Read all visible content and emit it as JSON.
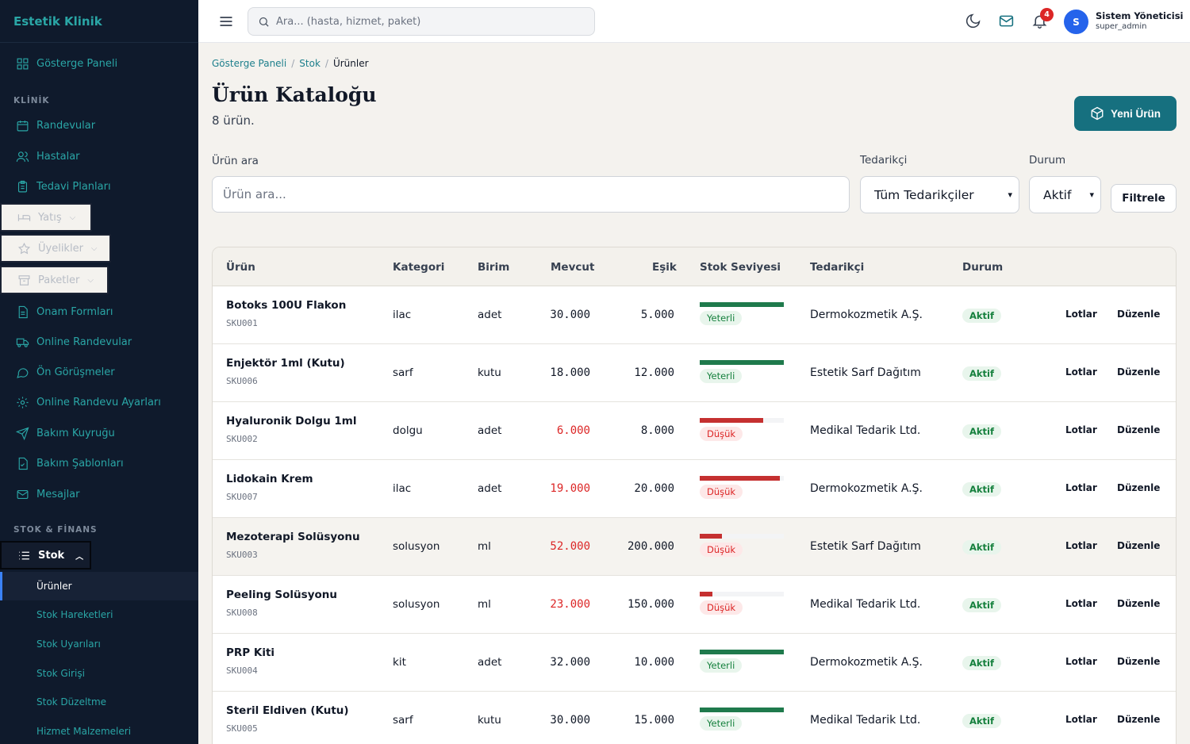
{
  "brand": "Estetik Klinik",
  "sidebar": {
    "dashboard": "Gösterge Paneli",
    "section_clinic": "KLİNİK",
    "clinic_items": [
      "Randevular",
      "Hastalar",
      "Tedavi Planları"
    ],
    "collapsed_items": [
      "Yatış",
      "Üyelikler",
      "Paketler"
    ],
    "more_items": [
      "Onam Formları",
      "Online Randevular",
      "Ön Görüşmeler",
      "Online Randevu Ayarları",
      "Bakım Kuyruğu",
      "Bakım Şablonları",
      "Mesajlar"
    ],
    "section_stock": "STOK & FİNANS",
    "stock_parent": "Stok",
    "stock_sub": [
      "Ürünler",
      "Stok Hareketleri",
      "Stok Uyarıları",
      "Stok Girişi",
      "Stok Düzeltme",
      "Hizmet Malzemeleri"
    ]
  },
  "topbar": {
    "search_placeholder": "Ara... (hasta, hizmet, paket)",
    "notification_count": "4",
    "avatar_initial": "S",
    "user_name": "Sistem Yöneticisi",
    "user_role": "super_admin"
  },
  "breadcrumb": {
    "home": "Gösterge Paneli",
    "stock": "Stok",
    "current": "Ürünler"
  },
  "page": {
    "title": "Ürün Kataloğu",
    "subtitle": "8 ürün.",
    "new_button": "Yeni Ürün"
  },
  "filters": {
    "search_label": "Ürün ara",
    "search_placeholder": "Ürün ara...",
    "supplier_label": "Tedarikçi",
    "supplier_value": "Tüm Tedarikçiler",
    "status_label": "Durum",
    "status_value": "Aktif",
    "filter_button": "Filtrele"
  },
  "table": {
    "headers": [
      "Ürün",
      "Kategori",
      "Birim",
      "Mevcut",
      "Eşik",
      "Stok Seviyesi",
      "Tedarikçi",
      "Durum"
    ],
    "action_lots": "Lotlar",
    "action_edit": "Düzenle",
    "rows": [
      {
        "name": "Botoks 100U Flakon",
        "sku": "SKU001",
        "category": "ilac",
        "unit": "adet",
        "current": "30.000",
        "threshold": "5.000",
        "level_label": "Yeterli",
        "level_state": "ok",
        "level_fraction": 1.0,
        "supplier": "Dermokozmetik A.Ş.",
        "status": "Aktif"
      },
      {
        "name": "Enjektör 1ml (Kutu)",
        "sku": "SKU006",
        "category": "sarf",
        "unit": "kutu",
        "current": "18.000",
        "threshold": "12.000",
        "level_label": "Yeterli",
        "level_state": "ok",
        "level_fraction": 1.0,
        "supplier": "Estetik Sarf Dağıtım",
        "status": "Aktif"
      },
      {
        "name": "Hyaluronik Dolgu 1ml",
        "sku": "SKU002",
        "category": "dolgu",
        "unit": "adet",
        "current": "6.000",
        "threshold": "8.000",
        "level_label": "Düşük",
        "level_state": "low",
        "level_fraction": 0.75,
        "supplier": "Medikal Tedarik Ltd.",
        "status": "Aktif"
      },
      {
        "name": "Lidokain Krem",
        "sku": "SKU007",
        "category": "ilac",
        "unit": "adet",
        "current": "19.000",
        "threshold": "20.000",
        "level_label": "Düşük",
        "level_state": "low",
        "level_fraction": 0.95,
        "supplier": "Dermokozmetik A.Ş.",
        "status": "Aktif"
      },
      {
        "name": "Mezoterapi Solüsyonu",
        "sku": "SKU003",
        "category": "solusyon",
        "unit": "ml",
        "current": "52.000",
        "threshold": "200.000",
        "level_label": "Düşük",
        "level_state": "low",
        "level_fraction": 0.26,
        "supplier": "Estetik Sarf Dağıtım",
        "status": "Aktif"
      },
      {
        "name": "Peeling Solüsyonu",
        "sku": "SKU008",
        "category": "solusyon",
        "unit": "ml",
        "current": "23.000",
        "threshold": "150.000",
        "level_label": "Düşük",
        "level_state": "low",
        "level_fraction": 0.15,
        "supplier": "Medikal Tedarik Ltd.",
        "status": "Aktif"
      },
      {
        "name": "PRP Kiti",
        "sku": "SKU004",
        "category": "kit",
        "unit": "adet",
        "current": "32.000",
        "threshold": "10.000",
        "level_label": "Yeterli",
        "level_state": "ok",
        "level_fraction": 1.0,
        "supplier": "Dermokozmetik A.Ş.",
        "status": "Aktif"
      },
      {
        "name": "Steril Eldiven (Kutu)",
        "sku": "SKU005",
        "category": "sarf",
        "unit": "kutu",
        "current": "30.000",
        "threshold": "15.000",
        "level_label": "Yeterli",
        "level_state": "ok",
        "level_fraction": 1.0,
        "supplier": "Medikal Tedarik Ltd.",
        "status": "Aktif"
      }
    ]
  },
  "colors": {
    "accent": "#16707f",
    "ok": "#1f7a4c",
    "low": "#c53030"
  }
}
